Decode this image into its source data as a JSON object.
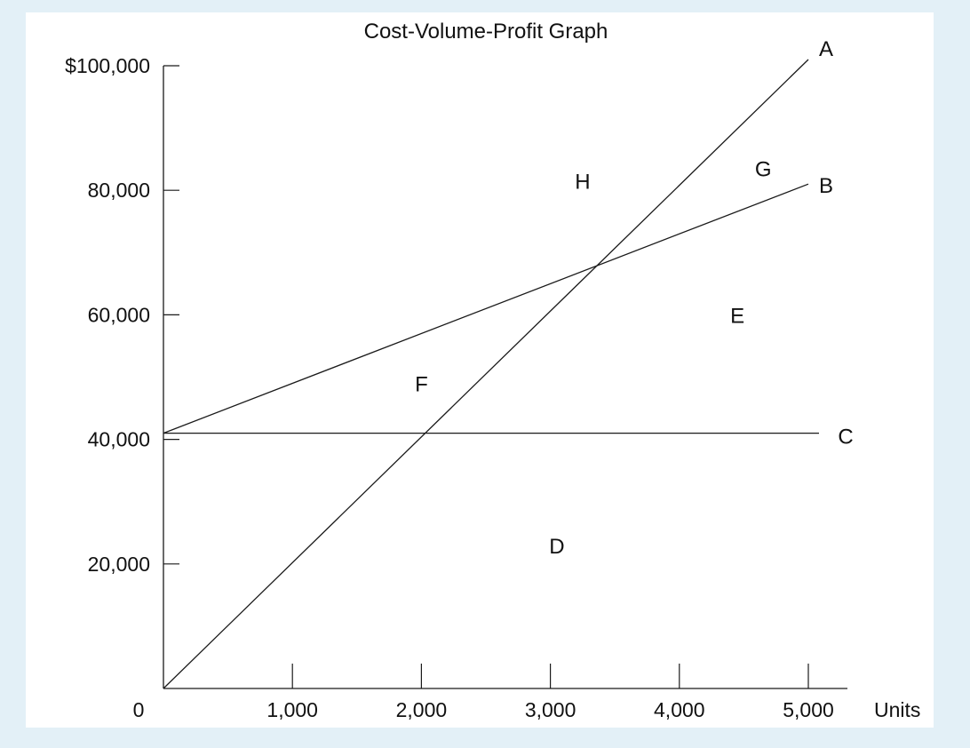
{
  "colors": {
    "page_background": "#e3f0f7",
    "plot_background": "#ffffff",
    "ink": "#1a1a1a"
  },
  "chart_data": {
    "type": "line",
    "title": "Cost-Volume-Profit Graph",
    "xlabel": "Units",
    "ylabel": "",
    "xlim": [
      0,
      5000
    ],
    "ylim": [
      0,
      100000
    ],
    "grid": false,
    "legend": "none",
    "origin_label": "0",
    "x_tick_labels": [
      "1,000",
      "2,000",
      "3,000",
      "4,000",
      "5,000"
    ],
    "x_tick_values": [
      1000,
      2000,
      3000,
      4000,
      5000
    ],
    "y_tick_labels": [
      "20,000",
      "40,000",
      "60,000",
      "80,000",
      "$100,000"
    ],
    "y_tick_values": [
      20000,
      40000,
      60000,
      80000,
      100000
    ],
    "series": [
      {
        "name": "A",
        "x": [
          0,
          5000
        ],
        "y": [
          0,
          101000
        ]
      },
      {
        "name": "B",
        "x": [
          0,
          5000
        ],
        "y": [
          41000,
          81000
        ]
      },
      {
        "name": "C",
        "x": [
          0,
          5000
        ],
        "y": [
          41000,
          41000
        ]
      }
    ],
    "region_labels": [
      {
        "label": "H",
        "x": 3250,
        "y": 81500
      },
      {
        "label": "G",
        "x": 4650,
        "y": 83500
      },
      {
        "label": "E",
        "x": 4450,
        "y": 60000
      },
      {
        "label": "F",
        "x": 2000,
        "y": 49000
      },
      {
        "label": "D",
        "x": 3050,
        "y": 23000
      }
    ]
  }
}
